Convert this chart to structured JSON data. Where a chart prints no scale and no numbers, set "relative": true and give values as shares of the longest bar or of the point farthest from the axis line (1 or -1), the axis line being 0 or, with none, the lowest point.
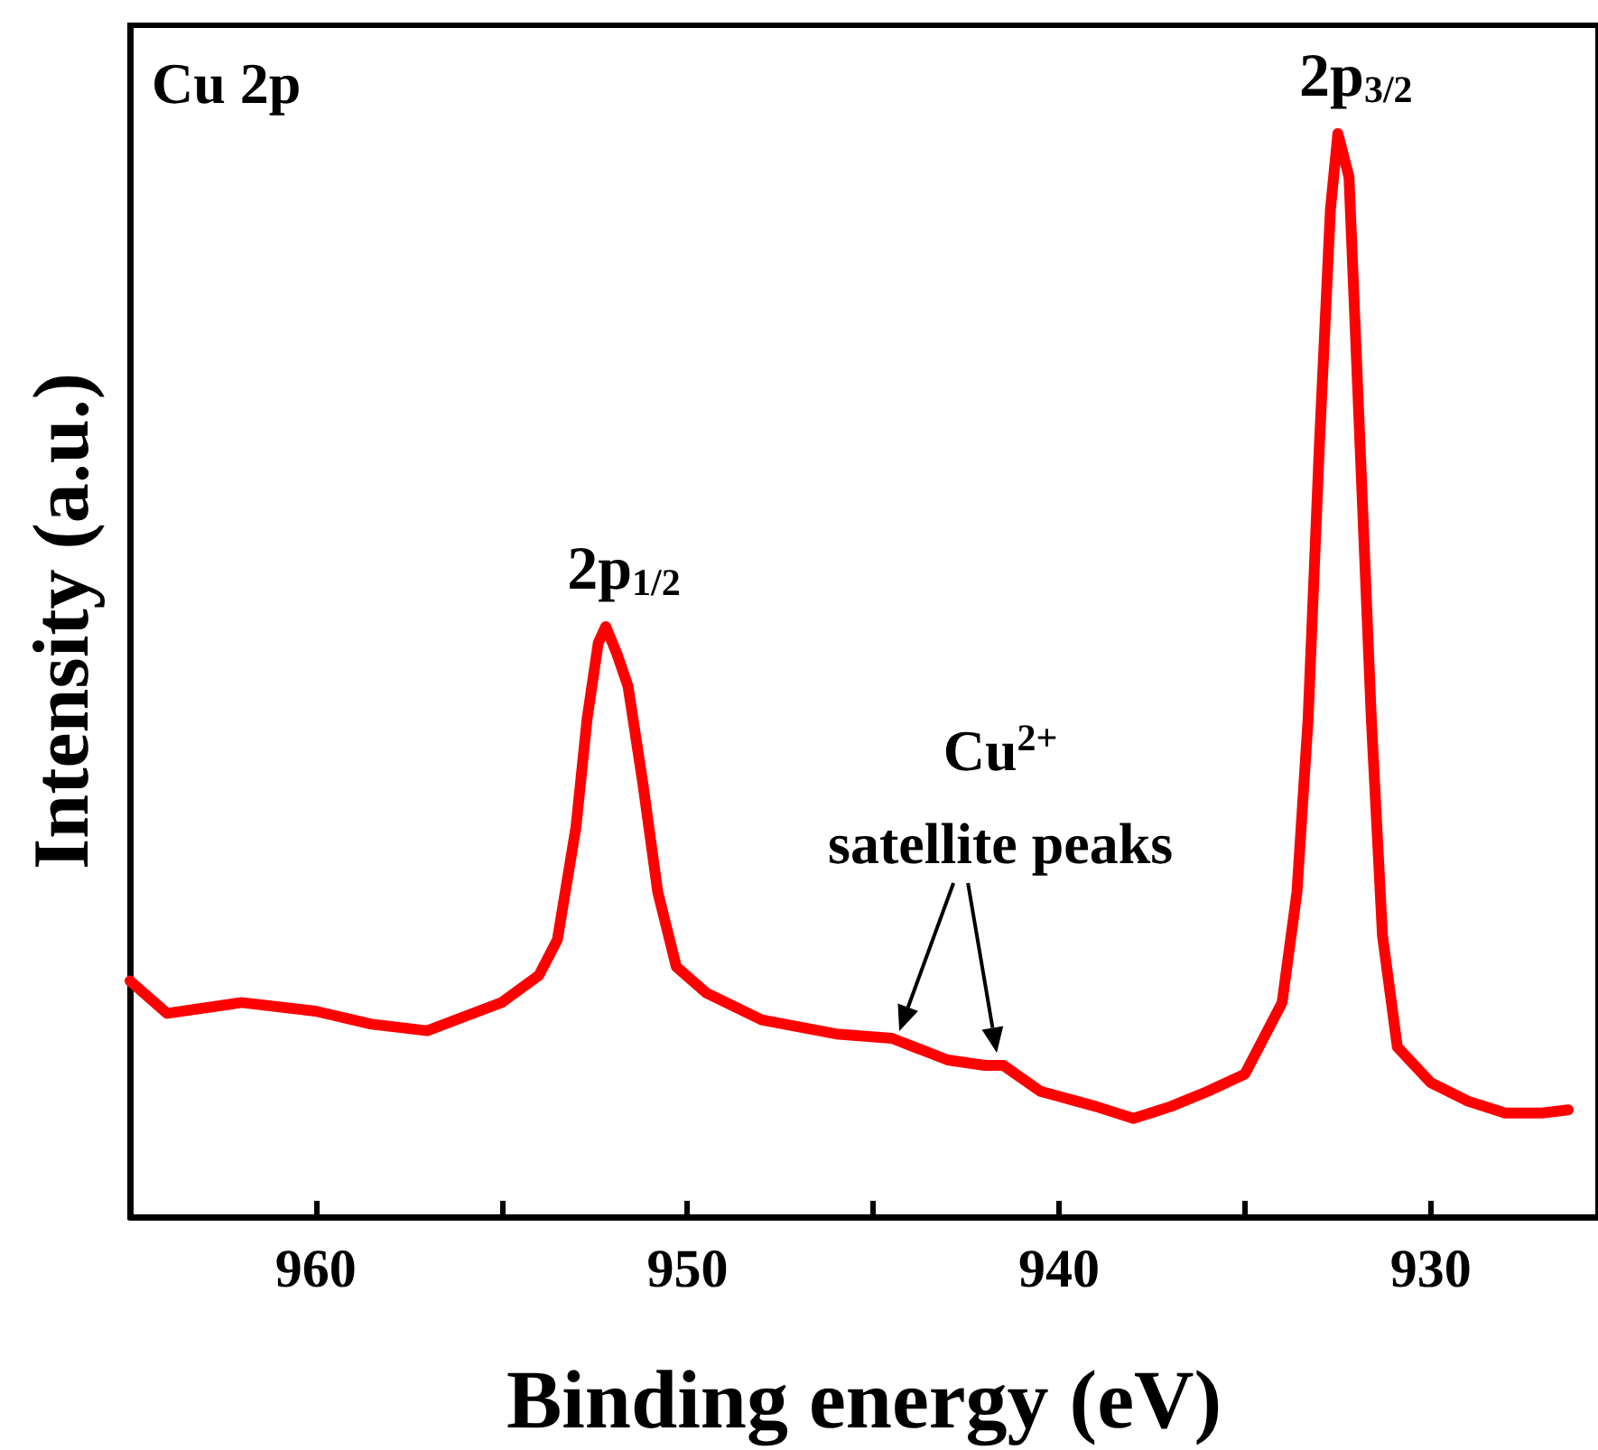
{
  "chart_data": {
    "type": "line",
    "relative": true,
    "xlabel": "Binding energy (eV)",
    "ylabel": "Intensity (a.u.)",
    "xlim": [
      965,
      925.5
    ],
    "xticks": [
      960,
      {
        "value": 955,
        "label": null
      },
      950,
      {
        "value": 945,
        "label": null
      },
      940,
      {
        "value": 935,
        "label": null
      },
      930
    ],
    "marker": "none",
    "annotations": [
      "Cu 2p",
      {
        "text": "2p$_{3/2}$",
        "x": 932.5,
        "y": 1.0
      },
      {
        "text": "2p$_{1/2}$",
        "x": 952.2,
        "y": 0.545
      },
      "Cu$^{2+}$",
      {
        "text": "satellite peaks",
        "x": 944.3,
        "y": 0.165
      }
    ],
    "series": [
      {
        "color": "#ff0000",
        "x": [
          965,
          964,
          962,
          960,
          958.5,
          957,
          955,
          954,
          953.5,
          953,
          952.7,
          952.4,
          952.2,
          951.9,
          951.6,
          951.2,
          950.8,
          950.3,
          949.5,
          948,
          946,
          944.5,
          943,
          942,
          941.5,
          940.5,
          939,
          938,
          937,
          936,
          935,
          934.5,
          934,
          933.6,
          933.3,
          933,
          932.7,
          932.5,
          932.2,
          931.9,
          931.6,
          931.3,
          930.9,
          930,
          929,
          928,
          927,
          926.3
        ],
        "values": [
          0.218,
          0.188,
          0.198,
          0.19,
          0.178,
          0.172,
          0.198,
          0.223,
          0.256,
          0.36,
          0.46,
          0.53,
          0.545,
          0.52,
          0.49,
          0.4,
          0.3,
          0.231,
          0.207,
          0.182,
          0.169,
          0.165,
          0.145,
          0.14,
          0.14,
          0.116,
          0.102,
          0.091,
          0.102,
          0.116,
          0.132,
          0.165,
          0.198,
          0.3,
          0.46,
          0.71,
          0.93,
          1.0,
          0.96,
          0.71,
          0.46,
          0.26,
          0.157,
          0.124,
          0.107,
          0.096,
          0.096,
          0.099
        ]
      }
    ]
  }
}
